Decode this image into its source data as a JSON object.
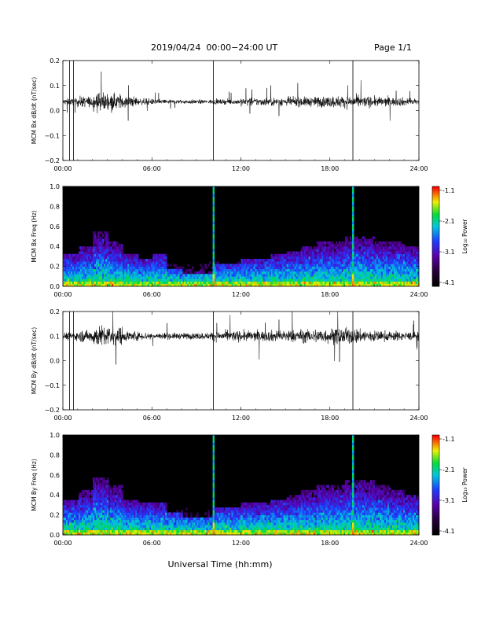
{
  "header": {
    "title": "2019/04/24  00:00−24:00 UT",
    "page": "Page 1/1"
  },
  "xlabel": "Universal Time (hh:mm)",
  "colorbar": {
    "label": "Log₁₀ Power",
    "ticks": [
      "-1.1",
      "-2.1",
      "-3.1",
      "-4.1"
    ]
  },
  "chart_data": [
    {
      "type": "line",
      "name": "mcm-bx-dbdt",
      "ylabel": "MCM Bx dB/dt (nT/sec)",
      "xlim": [
        0,
        24
      ],
      "ylim": [
        -0.2,
        0.2
      ],
      "xticks": [
        "00:00",
        "06:00",
        "12:00",
        "18:00",
        "24:00"
      ],
      "yticks": [
        "0.2",
        "0.1",
        "0.0",
        "−0.1",
        "−0.2"
      ],
      "baseline": 0.035,
      "noise_by_hour": [
        0.012,
        0.02,
        0.035,
        0.03,
        0.02,
        0.012,
        0.01,
        0.008,
        0.008,
        0.008,
        0.009,
        0.01,
        0.015,
        0.015,
        0.016,
        0.017,
        0.018,
        0.02,
        0.022,
        0.022,
        0.02,
        0.018,
        0.016,
        0.014
      ],
      "spikes_hours": [
        0.45,
        0.72,
        10.15,
        19.55
      ],
      "gridlines": false
    },
    {
      "type": "heatmap",
      "name": "mcm-bx-freq",
      "ylabel": "MCM Bx Freq (Hz)",
      "xlim": [
        0,
        24
      ],
      "ylim": [
        0,
        1.0
      ],
      "xticks": [
        "00:00",
        "06:00",
        "12:00",
        "18:00",
        "24:00"
      ],
      "yticks": [
        "1.0",
        "0.8",
        "0.6",
        "0.4",
        "0.2",
        "0.0"
      ],
      "zlim": [
        -4.1,
        -1.1
      ],
      "activity_by_hour": [
        0.35,
        0.45,
        0.6,
        0.5,
        0.35,
        0.3,
        0.35,
        0.2,
        0.15,
        0.15,
        0.25,
        0.25,
        0.3,
        0.3,
        0.35,
        0.4,
        0.45,
        0.5,
        0.5,
        0.55,
        0.55,
        0.5,
        0.5,
        0.45
      ],
      "vertical_lines_hours": [
        10.15,
        19.55
      ]
    },
    {
      "type": "line",
      "name": "mcm-by-dbdt",
      "ylabel": "MCM By dB/dt (nT/sec)",
      "xlim": [
        0,
        24
      ],
      "ylim": [
        -0.2,
        0.2
      ],
      "xticks": [
        "00:00",
        "06:00",
        "12:00",
        "18:00",
        "24:00"
      ],
      "yticks": [
        "0.2",
        "0.1",
        "0.0",
        "−0.1",
        "−0.2"
      ],
      "baseline": 0.1,
      "noise_by_hour": [
        0.015,
        0.022,
        0.04,
        0.035,
        0.02,
        0.015,
        0.013,
        0.012,
        0.012,
        0.013,
        0.018,
        0.02,
        0.02,
        0.02,
        0.022,
        0.024,
        0.025,
        0.028,
        0.03,
        0.03,
        0.025,
        0.02,
        0.018,
        0.016
      ],
      "spikes_hours": [
        0.45,
        0.72,
        10.15,
        19.55
      ],
      "gridlines": false
    },
    {
      "type": "heatmap",
      "name": "mcm-by-freq",
      "ylabel": "MCM By Freq (Hz)",
      "xlim": [
        0,
        24
      ],
      "ylim": [
        0,
        1.0
      ],
      "xticks": [
        "00:00",
        "06:00",
        "12:00",
        "18:00",
        "24:00"
      ],
      "yticks": [
        "1.0",
        "0.8",
        "0.6",
        "0.4",
        "0.2",
        "0.0"
      ],
      "zlim": [
        -4.1,
        -1.1
      ],
      "activity_by_hour": [
        0.4,
        0.5,
        0.65,
        0.55,
        0.4,
        0.35,
        0.35,
        0.25,
        0.2,
        0.2,
        0.3,
        0.3,
        0.35,
        0.35,
        0.4,
        0.45,
        0.5,
        0.55,
        0.55,
        0.6,
        0.6,
        0.55,
        0.5,
        0.45
      ],
      "vertical_lines_hours": [
        10.15,
        19.55
      ]
    }
  ]
}
